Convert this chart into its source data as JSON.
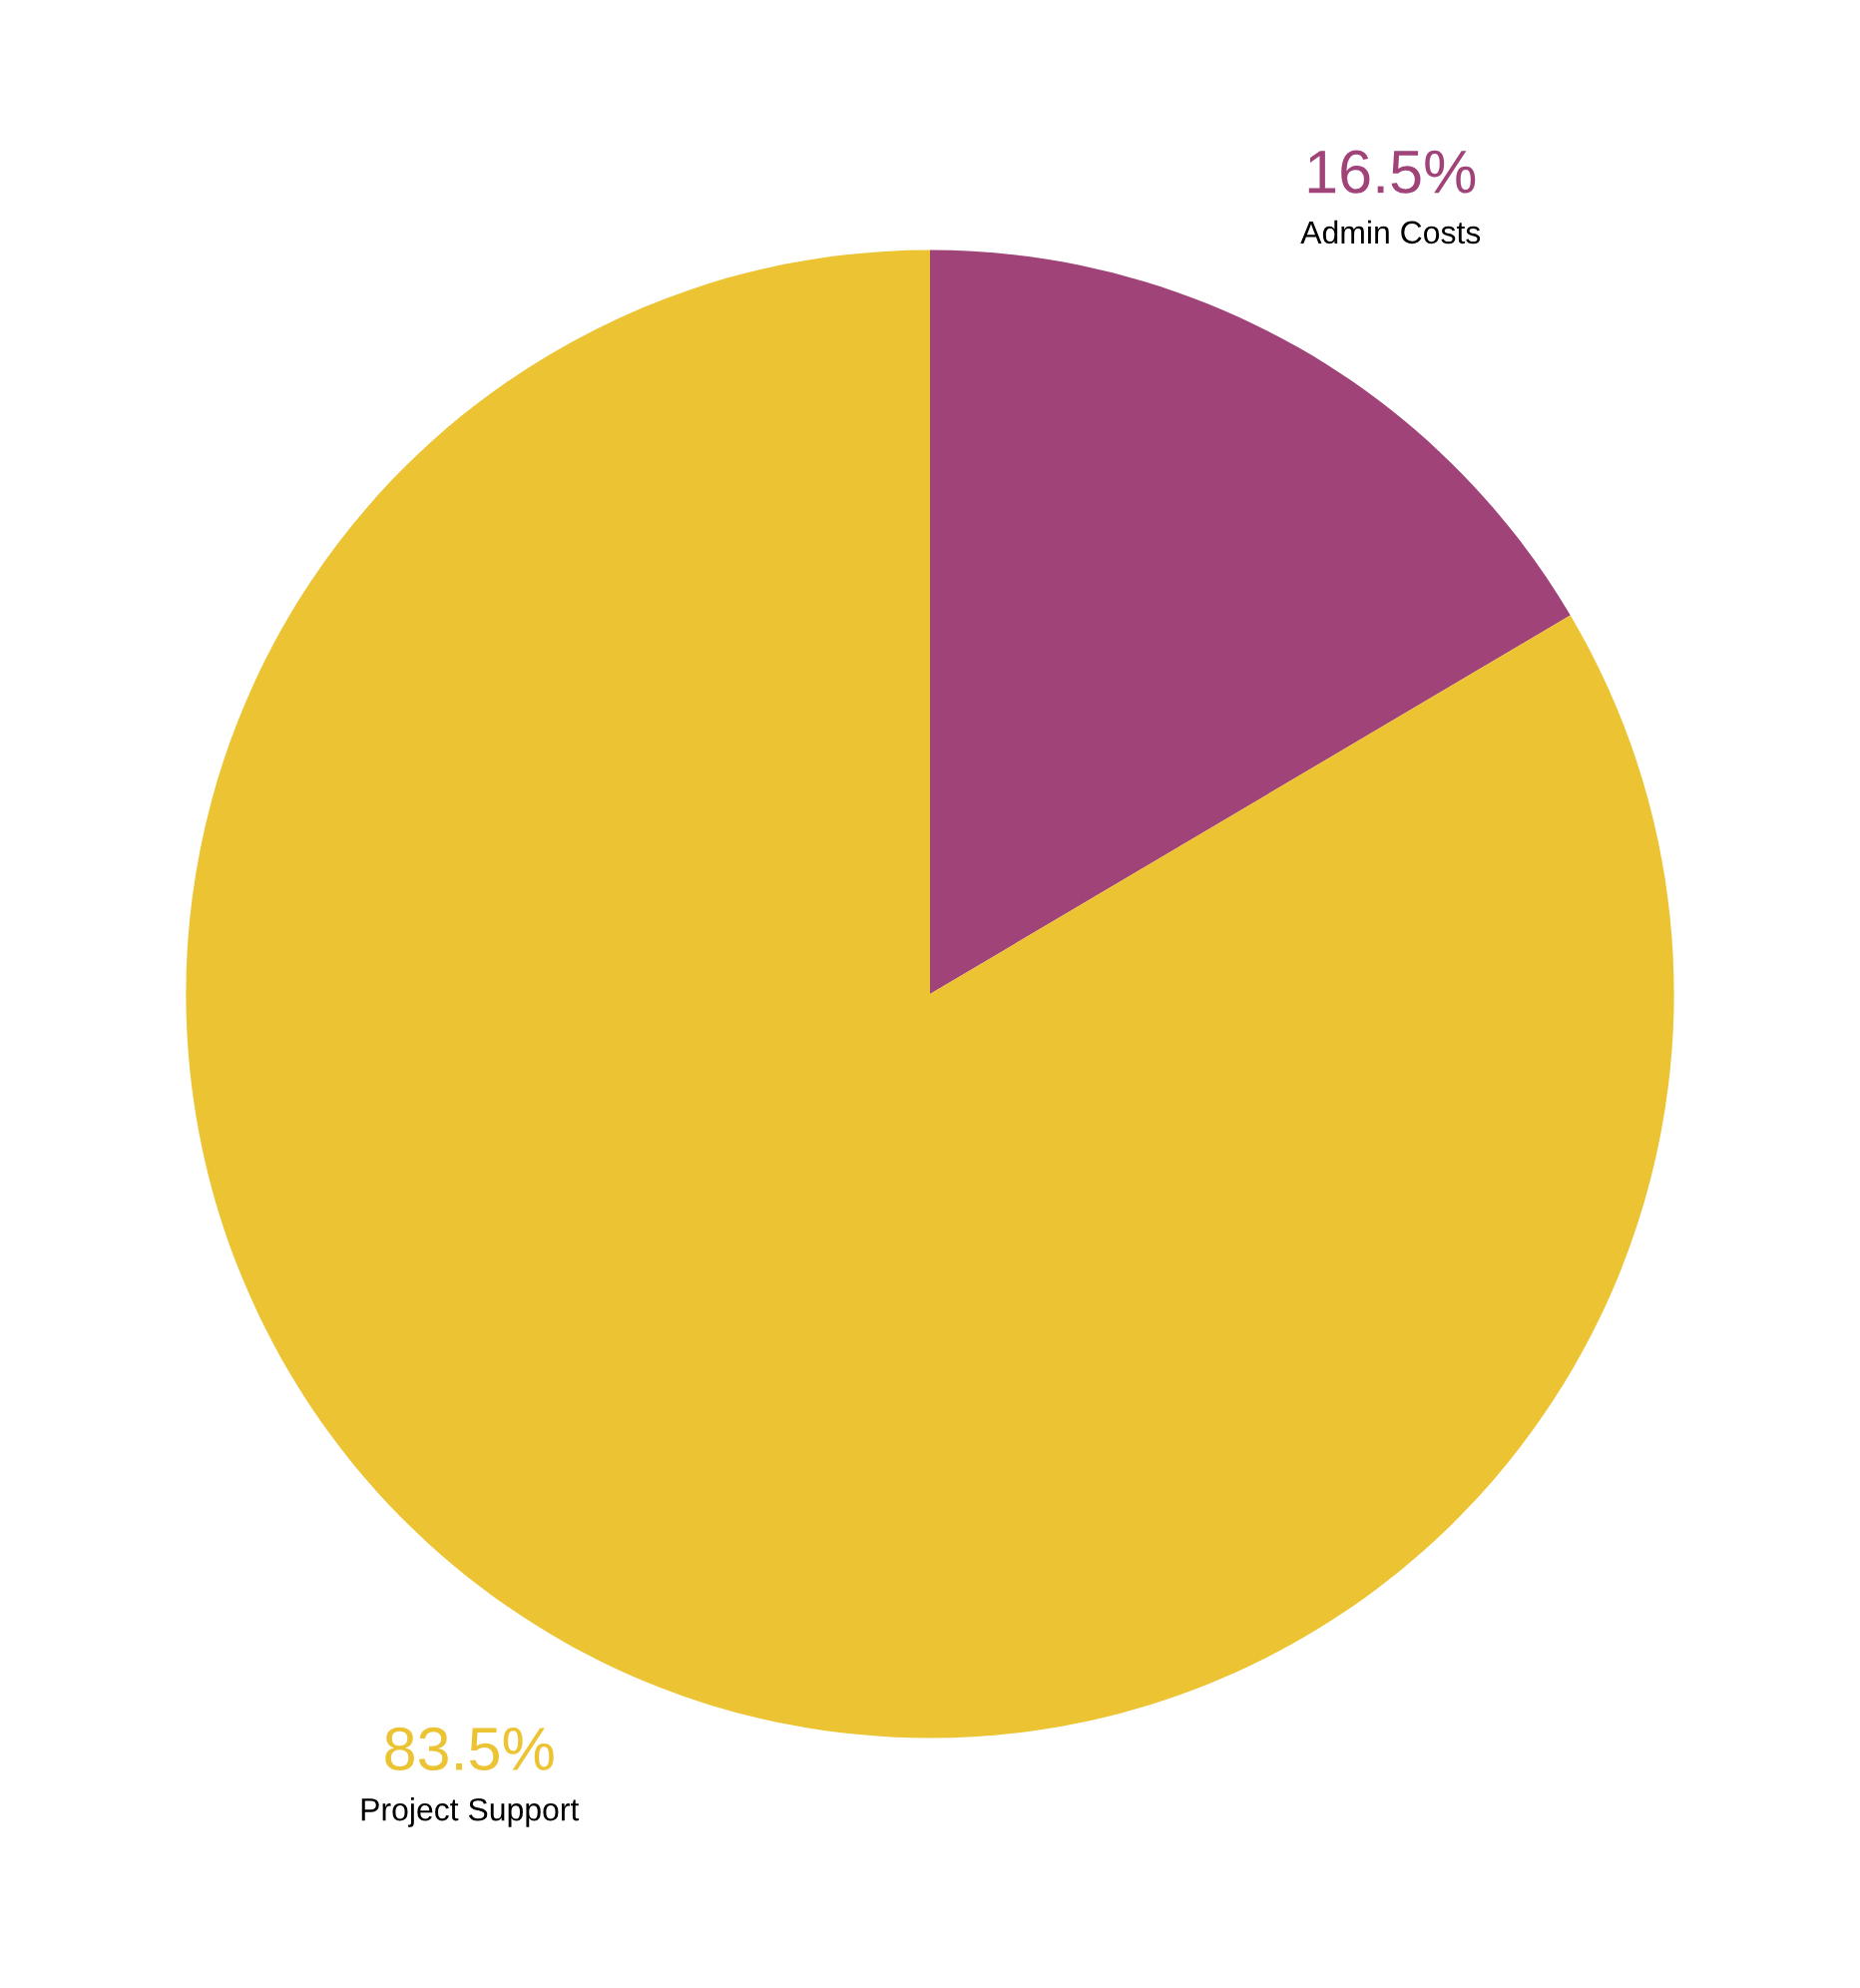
{
  "chart_data": {
    "type": "pie",
    "categories": [
      "Admin Costs",
      "Project Support"
    ],
    "values": [
      16.5,
      83.5
    ],
    "colors": [
      "#a04378",
      "#ecc333"
    ],
    "value_labels": [
      "16.5%",
      "83.5%"
    ]
  }
}
